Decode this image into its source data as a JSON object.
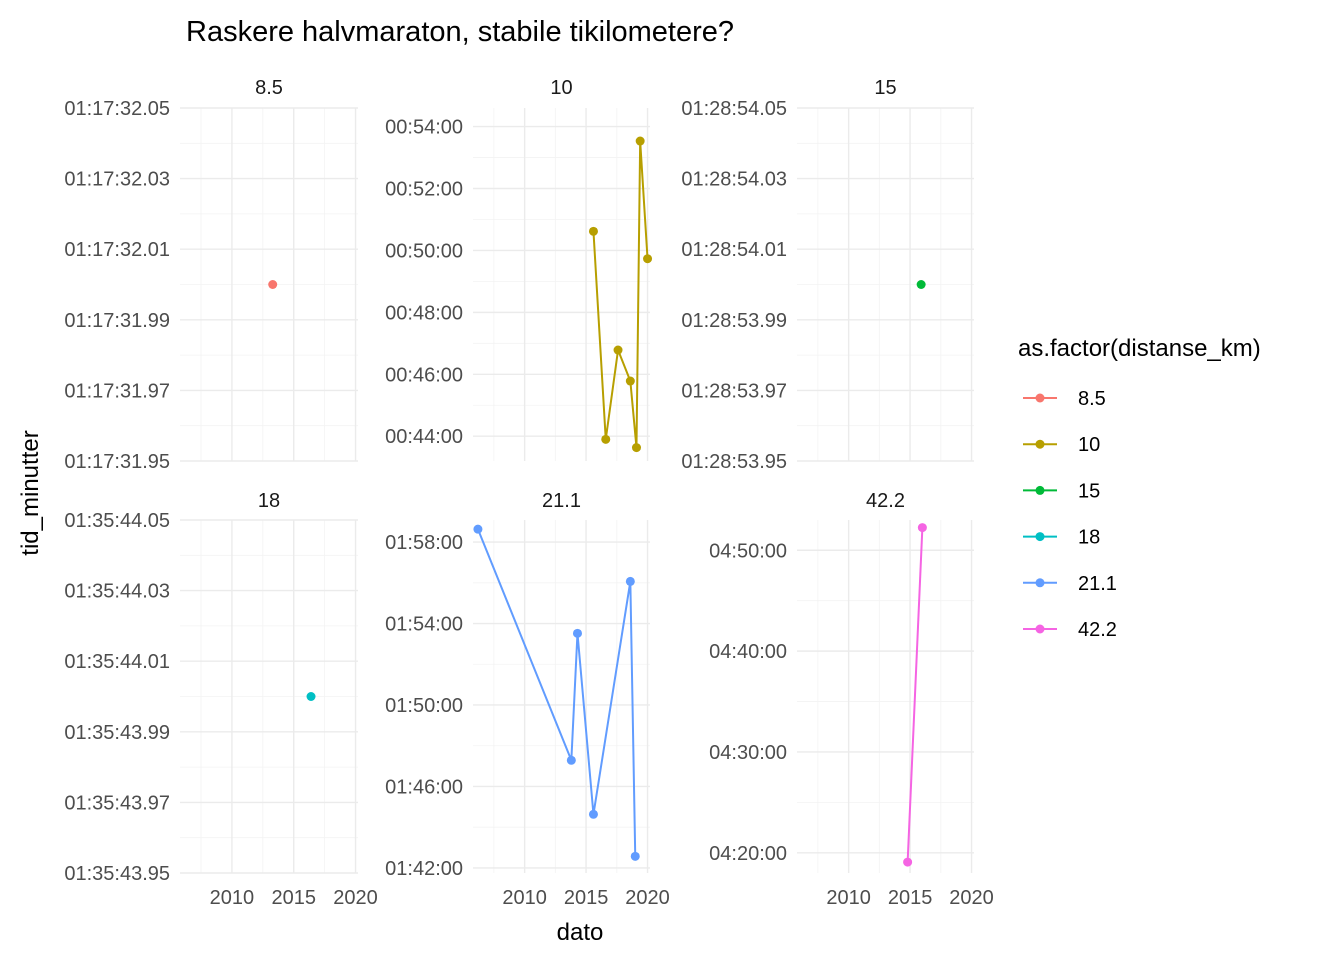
{
  "chart_data": {
    "type": "line",
    "title": "Raskere halvmaraton, stabile tikilometere?",
    "xlabel": "dato",
    "ylabel": "tid_minutter",
    "grid": true,
    "facet_scales": "free_y",
    "xlim": [
      2005.8,
      2020.2
    ],
    "x_ticks": [
      2010,
      2015,
      2020
    ],
    "x_tick_labels": [
      "2010",
      "2015",
      "2020"
    ],
    "legend": {
      "title": "as.factor(distanse_km)",
      "position": "right",
      "entries": [
        "8.5",
        "10",
        "15",
        "18",
        "21.1",
        "42.2"
      ]
    },
    "panels": [
      {
        "label": "8.5",
        "color": "#F8766D",
        "ylim": [
          4651.95,
          4652.05
        ],
        "y_ticks": [
          4651.95,
          4651.97,
          4651.99,
          4652.01,
          4652.03,
          4652.05
        ],
        "y_tick_labels": [
          "01:17:31.95",
          "01:17:31.97",
          "01:17:31.99",
          "01:17:32.01",
          "01:17:32.03",
          "01:17:32.05"
        ],
        "x": [
          2013.3
        ],
        "y": [
          4652.0
        ]
      },
      {
        "label": "10",
        "color": "#B79F00",
        "ylim": [
          2592,
          3276
        ],
        "y_ticks": [
          2640,
          2760,
          2880,
          3000,
          3120,
          3240
        ],
        "y_tick_labels": [
          "00:44:00",
          "00:46:00",
          "00:48:00",
          "00:50:00",
          "00:52:00",
          "00:54:00"
        ],
        "x": [
          2015.6,
          2016.6,
          2017.6,
          2018.6,
          2019.1,
          2019.4,
          2020.0
        ],
        "y": [
          3037,
          2634,
          2807,
          2747,
          2618,
          3212,
          2984
        ]
      },
      {
        "label": "15",
        "color": "#00BA38",
        "ylim": [
          5333.95,
          5334.05
        ],
        "y_ticks": [
          5333.95,
          5333.97,
          5333.99,
          5334.01,
          5334.03,
          5334.05
        ],
        "y_tick_labels": [
          "01:28:53.95",
          "01:28:53.97",
          "01:28:53.99",
          "01:28:54.01",
          "01:28:54.03",
          "01:28:54.05"
        ],
        "x": [
          2015.9
        ],
        "y": [
          5334.0
        ]
      },
      {
        "label": "18",
        "color": "#00BFC4",
        "ylim": [
          5743.95,
          5744.05
        ],
        "y_ticks": [
          5743.95,
          5743.97,
          5743.99,
          5744.01,
          5744.03,
          5744.05
        ],
        "y_tick_labels": [
          "01:35:43.95",
          "01:35:43.97",
          "01:35:43.99",
          "01:35:44.01",
          "01:35:44.03",
          "01:35:44.05"
        ],
        "x": [
          2016.4
        ],
        "y": [
          5744.0
        ]
      },
      {
        "label": "21.1",
        "color": "#619CFF",
        "ylim": [
          6105,
          7145
        ],
        "y_ticks": [
          6120,
          6360,
          6600,
          6840,
          7080
        ],
        "y_tick_labels": [
          "01:42:00",
          "01:46:00",
          "01:50:00",
          "01:54:00",
          "01:58:00"
        ],
        "x": [
          2006.2,
          2013.8,
          2014.3,
          2015.6,
          2018.6,
          2019.0
        ],
        "y": [
          7118,
          6437,
          6811,
          6278,
          6964,
          6154
        ]
      },
      {
        "label": "42.2",
        "color": "#F564E3",
        "ylim": [
          15480,
          17580
        ],
        "y_ticks": [
          15600,
          16200,
          16800,
          17400
        ],
        "y_tick_labels": [
          "04:20:00",
          "04:30:00",
          "04:40:00",
          "04:50:00"
        ],
        "x": [
          2014.8,
          2016.0
        ],
        "y": [
          15545,
          17535
        ]
      }
    ]
  }
}
